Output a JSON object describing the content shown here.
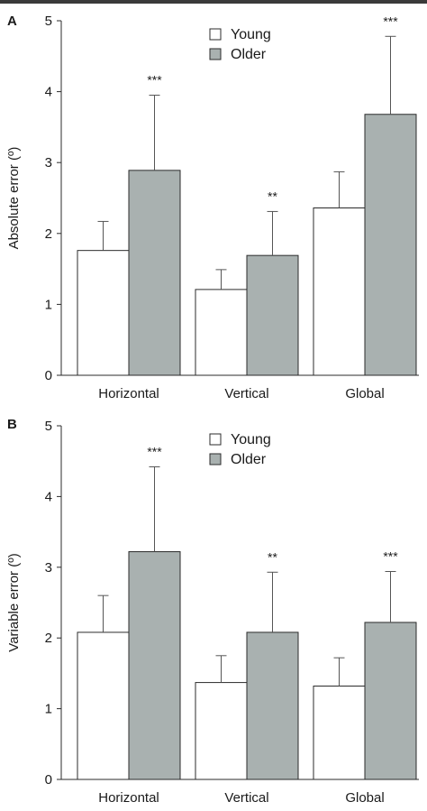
{
  "colors": {
    "young": "#ffffff",
    "older": "#a9b1b0",
    "stroke": "#2b2b2b"
  },
  "chart_data": [
    {
      "panel": "A",
      "type": "bar",
      "categories": [
        "Horizontal",
        "Vertical",
        "Global"
      ],
      "ylabel": "Absolute error (º)",
      "ylim": [
        0,
        5
      ],
      "yticks": [
        "0",
        "1",
        "2",
        "3",
        "4",
        "5"
      ],
      "legend": "top-center",
      "series": [
        {
          "name": "Young",
          "values": [
            1.76,
            1.21,
            2.36
          ],
          "errors": [
            0.41,
            0.28,
            0.51
          ]
        },
        {
          "name": "Older",
          "values": [
            2.89,
            1.69,
            3.68
          ],
          "errors": [
            1.06,
            0.62,
            1.1
          ]
        }
      ],
      "annotations": [
        "***",
        "**",
        "***"
      ]
    },
    {
      "panel": "B",
      "type": "bar",
      "categories": [
        "Horizontal",
        "Vertical",
        "Global"
      ],
      "ylabel": "Variable error (º)",
      "ylim": [
        0,
        5
      ],
      "yticks": [
        "0",
        "1",
        "2",
        "3",
        "4",
        "5"
      ],
      "legend": "top-center",
      "series": [
        {
          "name": "Young",
          "values": [
            2.08,
            1.37,
            1.32
          ],
          "errors": [
            0.52,
            0.38,
            0.4
          ]
        },
        {
          "name": "Older",
          "values": [
            3.22,
            2.08,
            2.22
          ],
          "errors": [
            1.2,
            0.85,
            0.72
          ]
        }
      ],
      "annotations": [
        "***",
        "**",
        "***"
      ]
    }
  ]
}
